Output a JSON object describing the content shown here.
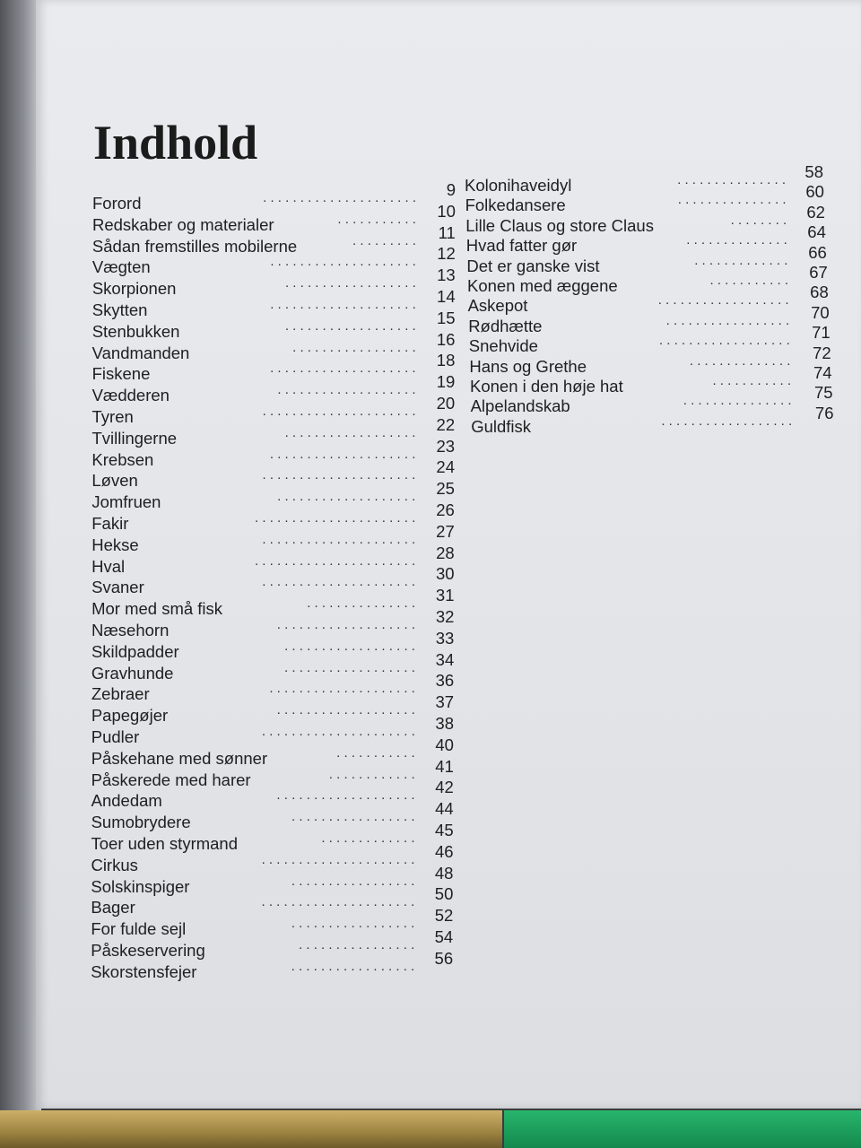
{
  "title": "Indhold",
  "left_column": [
    {
      "label": "Forord",
      "page": "9"
    },
    {
      "label": "Redskaber og materialer",
      "page": "10"
    },
    {
      "label": "Sådan fremstilles mobilerne",
      "page": "11"
    },
    {
      "label": "Vægten",
      "page": "12"
    },
    {
      "label": "Skorpionen",
      "page": "13"
    },
    {
      "label": "Skytten",
      "page": "14"
    },
    {
      "label": "Stenbukken",
      "page": "15"
    },
    {
      "label": "Vandmanden",
      "page": "16"
    },
    {
      "label": "Fiskene",
      "page": "18"
    },
    {
      "label": "Vædderen",
      "page": "19"
    },
    {
      "label": "Tyren",
      "page": "20"
    },
    {
      "label": "Tvillingerne",
      "page": "22"
    },
    {
      "label": "Krebsen",
      "page": "23"
    },
    {
      "label": "Løven",
      "page": "24"
    },
    {
      "label": "Jomfruen",
      "page": "25"
    },
    {
      "label": "Fakir",
      "page": "26"
    },
    {
      "label": "Hekse",
      "page": "27"
    },
    {
      "label": "Hval",
      "page": "28"
    },
    {
      "label": "Svaner",
      "page": "30"
    },
    {
      "label": "Mor med små fisk",
      "page": "31"
    },
    {
      "label": "Næsehorn",
      "page": "32"
    },
    {
      "label": "Skildpadder",
      "page": "33"
    },
    {
      "label": "Gravhunde",
      "page": "34"
    },
    {
      "label": "Zebraer",
      "page": "36"
    },
    {
      "label": "Papegøjer",
      "page": "37"
    },
    {
      "label": "Pudler",
      "page": "38"
    },
    {
      "label": "Påskehane med sønner",
      "page": "40"
    },
    {
      "label": "Påskerede med harer",
      "page": "41"
    },
    {
      "label": "Andedam",
      "page": "42"
    },
    {
      "label": "Sumobrydere",
      "page": "44"
    },
    {
      "label": "Toer uden styrmand",
      "page": "45"
    },
    {
      "label": "Cirkus",
      "page": "46"
    },
    {
      "label": "Solskinspiger",
      "page": "48"
    },
    {
      "label": "Bager",
      "page": "50"
    },
    {
      "label": "For fulde sejl",
      "page": "52"
    },
    {
      "label": "Påskeservering",
      "page": "54"
    },
    {
      "label": "Skorstensfejer",
      "page": "56"
    }
  ],
  "right_column": [
    {
      "label": "Kolonihaveidyl",
      "page": "58"
    },
    {
      "label": "Folkedansere",
      "page": "60"
    },
    {
      "label": "Lille Claus og store Claus",
      "page": "62"
    },
    {
      "label": "Hvad fatter gør",
      "page": "64"
    },
    {
      "label": "Det er ganske vist",
      "page": "66"
    },
    {
      "label": "Konen med æggene",
      "page": "67"
    },
    {
      "label": "Askepot",
      "page": "68"
    },
    {
      "label": "Rødhætte",
      "page": "70"
    },
    {
      "label": "Snehvide",
      "page": "71"
    },
    {
      "label": "Hans og Grethe",
      "page": "72"
    },
    {
      "label": "Konen i den høje hat",
      "page": "74"
    },
    {
      "label": "Alpelandskab",
      "page": "75"
    },
    {
      "label": "Guldfisk",
      "page": "76"
    }
  ]
}
